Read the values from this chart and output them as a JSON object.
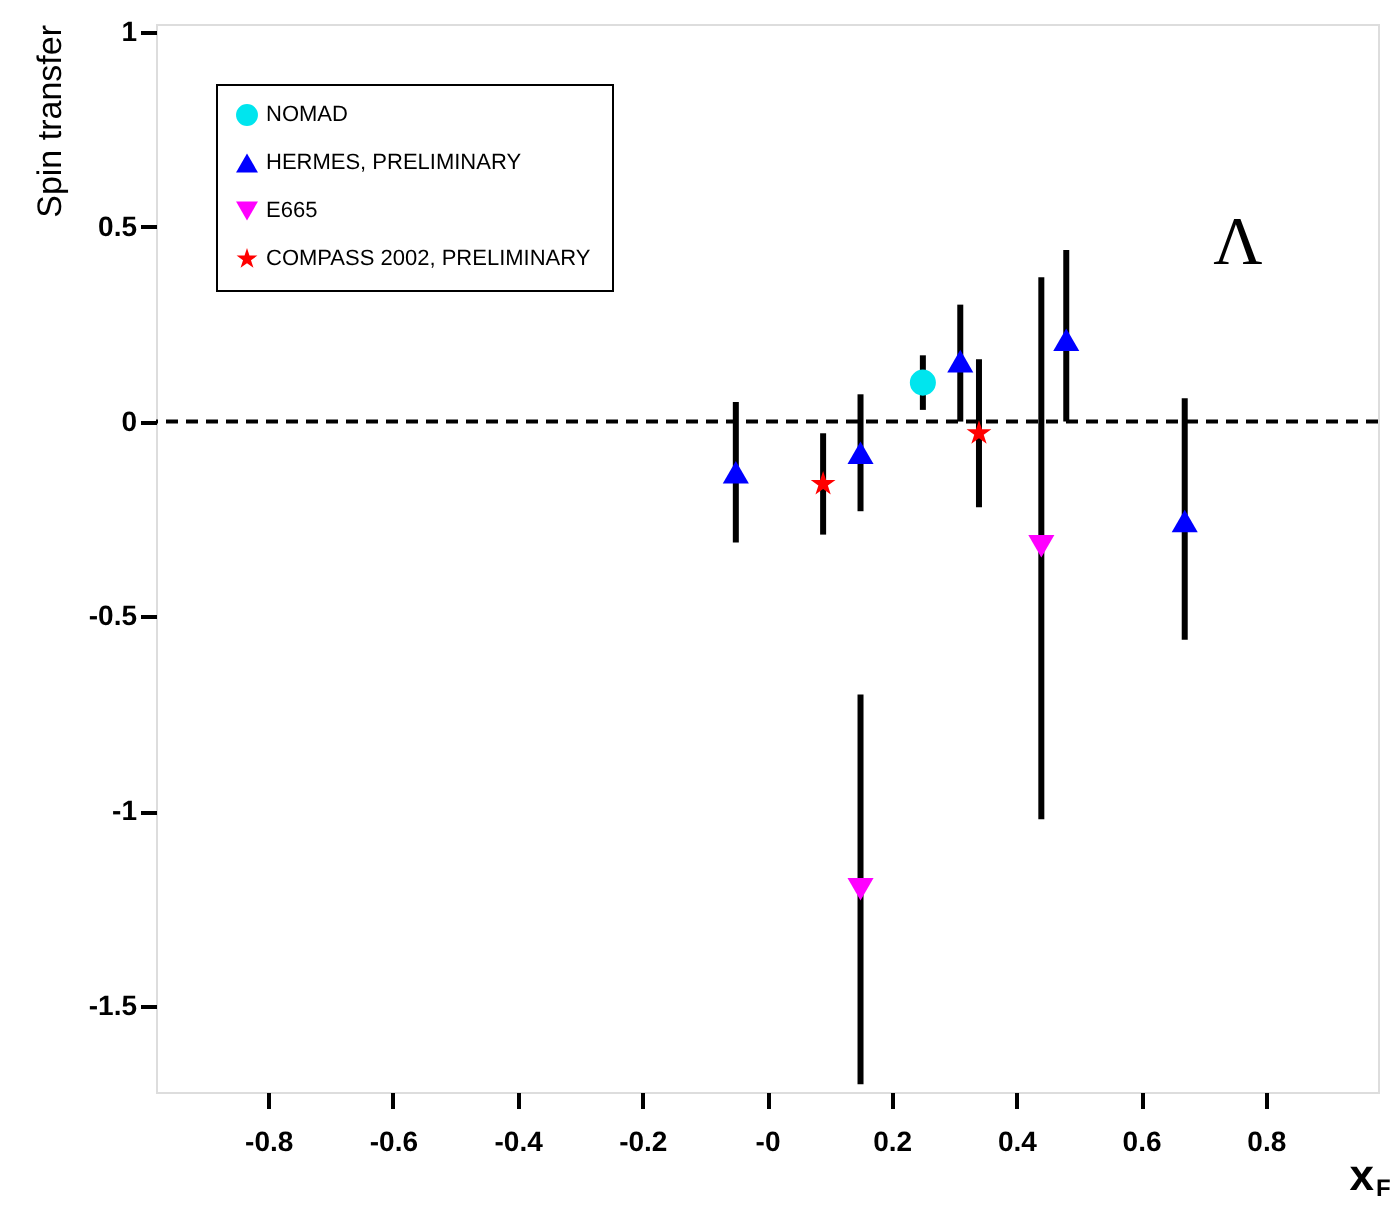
{
  "chart_data": {
    "type": "scatter",
    "xlabel": "x$_{F}$",
    "ylabel": "Spin transfer",
    "xlim": [
      -0.98,
      0.98
    ],
    "ylim": [
      -1.72,
      1.02
    ],
    "xticks": [
      -0.8,
      -0.6,
      -0.4,
      -0.2,
      {
        "value": 0,
        "label": "-0"
      },
      0.2,
      0.4,
      0.6,
      0.8
    ],
    "yticks": [
      -1.5,
      -1,
      -0.5,
      0,
      0.5,
      1
    ],
    "grid": false,
    "legend": "top left",
    "ref_lines": [
      {
        "axis": "y",
        "value": 0,
        "line_style": "dashed",
        "color": "#000000"
      }
    ],
    "annotations": [
      "Λ"
    ],
    "series": [
      {
        "name": "NOMAD",
        "color": "#00e5ee",
        "marker": "circle",
        "x": [
          0.25
        ],
        "values": [
          0.1
        ],
        "errors": [
          [
            0.03,
            0.17
          ]
        ]
      },
      {
        "name": "HERMES, PRELIMINARY",
        "color": "#0000ff",
        "marker": "triangle",
        "x": [
          -0.05,
          0.15,
          0.31,
          0.48,
          0.67
        ],
        "values": [
          -0.13,
          -0.08,
          0.155,
          0.21,
          -0.255
        ],
        "errors": [
          [
            -0.31,
            0.05
          ],
          [
            -0.23,
            0.07
          ],
          [
            0.0,
            0.3
          ],
          [
            0.0,
            0.44
          ],
          [
            -0.56,
            0.06
          ]
        ]
      },
      {
        "name": "E665",
        "color": "#ff00ff",
        "marker": "triangle-down",
        "x": [
          0.15,
          0.44
        ],
        "values": [
          -1.2,
          -0.32
        ],
        "errors": [
          [
            -1.7,
            -0.7
          ],
          [
            -1.02,
            0.37
          ]
        ]
      },
      {
        "name": "COMPASS 2002, PRELIMINARY",
        "color": "#ff0000",
        "marker": "star",
        "x": [
          0.09,
          0.34
        ],
        "values": [
          -0.16,
          -0.03
        ],
        "errors": [
          [
            -0.29,
            -0.03
          ],
          [
            -0.22,
            0.16
          ]
        ]
      }
    ]
  }
}
